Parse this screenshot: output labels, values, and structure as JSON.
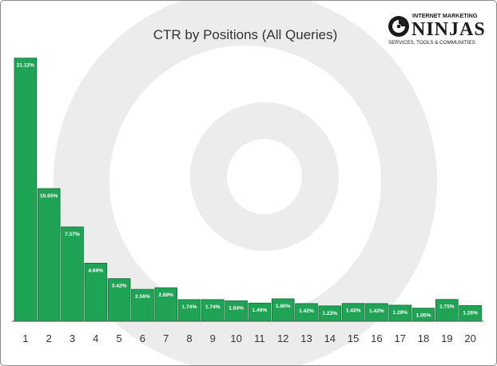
{
  "chart_data": {
    "type": "bar",
    "title": "CTR by Positions (All Queries)",
    "categories": [
      "1",
      "2",
      "3",
      "4",
      "5",
      "6",
      "7",
      "8",
      "9",
      "10",
      "11",
      "12",
      "13",
      "14",
      "15",
      "16",
      "17",
      "18",
      "19",
      "20"
    ],
    "values": [
      21.12,
      10.65,
      7.57,
      4.66,
      3.42,
      2.56,
      2.69,
      1.74,
      1.74,
      1.64,
      1.46,
      1.8,
      1.42,
      1.23,
      1.43,
      1.42,
      1.29,
      1.05,
      1.75,
      1.26
    ],
    "data_labels": [
      "21.12%",
      "10.65%",
      "7.57%",
      "4.66%",
      "3.42%",
      "2.56%",
      "2.69%",
      "1.74%",
      "1.74%",
      "1.64%",
      "1.46%",
      "1.80%",
      "1.42%",
      "1.23%",
      "1.43%",
      "1.42%",
      "1.29%",
      "1.05%",
      "1.75%",
      "1.26%"
    ],
    "xlabel": "",
    "ylabel": "",
    "ylim": [
      0,
      22
    ],
    "grid": false,
    "legend": "none",
    "bar_color": "#1fa355",
    "bar_edge_color": "#0e6e33",
    "label_color": "#ffffff"
  },
  "logo": {
    "line1": "INTERNET MARKETING",
    "brand": "NINJAS",
    "tagline": "SERVICES, TOOLS & COMMUNITIES",
    "color": "#1a1a1a"
  },
  "watermark_color": "#ececec"
}
